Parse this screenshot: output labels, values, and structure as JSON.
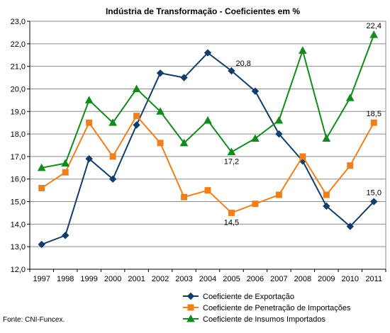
{
  "chart_data": {
    "type": "line",
    "title": "Indústria de Transformação - Coeficientes em %",
    "categories": [
      "1997",
      "1998",
      "1999",
      "2000",
      "2001",
      "2002",
      "2003",
      "2004",
      "2005",
      "2006",
      "2007",
      "2008",
      "2009",
      "2010",
      "2011"
    ],
    "ylim": [
      12.0,
      23.0
    ],
    "yticks": [
      "12,0",
      "13,0",
      "14,0",
      "15,0",
      "16,0",
      "17,0",
      "18,0",
      "19,0",
      "20,0",
      "21,0",
      "22,0",
      "23,0"
    ],
    "grid": true,
    "legend_position": "bottom-right",
    "series": [
      {
        "name": "Coeficiente de Exportação",
        "color": "#123C69",
        "marker": "diamond",
        "values": [
          13.1,
          13.5,
          16.9,
          16.0,
          18.4,
          20.7,
          20.5,
          21.6,
          20.8,
          19.9,
          18.0,
          16.8,
          14.8,
          13.9,
          15.0
        ]
      },
      {
        "name": "Coeficiente de Penetração de Importações",
        "color": "#F07F1E",
        "marker": "square",
        "values": [
          15.6,
          16.3,
          18.5,
          17.0,
          18.8,
          17.6,
          15.2,
          15.5,
          14.5,
          14.9,
          15.3,
          17.0,
          15.3,
          16.6,
          18.5
        ]
      },
      {
        "name": "Coeficiente de Insumos Importados",
        "color": "#138A1E",
        "marker": "triangle",
        "values": [
          16.5,
          16.7,
          19.5,
          18.5,
          20.0,
          19.0,
          17.6,
          18.6,
          17.2,
          17.8,
          18.6,
          21.7,
          17.8,
          19.6,
          22.4
        ]
      }
    ],
    "annotations": [
      {
        "text": "20,8",
        "series": 0,
        "index": 8,
        "pos": "above-right"
      },
      {
        "text": "15,0",
        "series": 0,
        "index": 14,
        "pos": "above"
      },
      {
        "text": "14,5",
        "series": 1,
        "index": 8,
        "pos": "below"
      },
      {
        "text": "18,5",
        "series": 1,
        "index": 14,
        "pos": "above"
      },
      {
        "text": "17,2",
        "series": 2,
        "index": 8,
        "pos": "below"
      },
      {
        "text": "22,4",
        "series": 2,
        "index": 14,
        "pos": "above"
      }
    ]
  },
  "source": "Fonte: CNI-Funcex."
}
